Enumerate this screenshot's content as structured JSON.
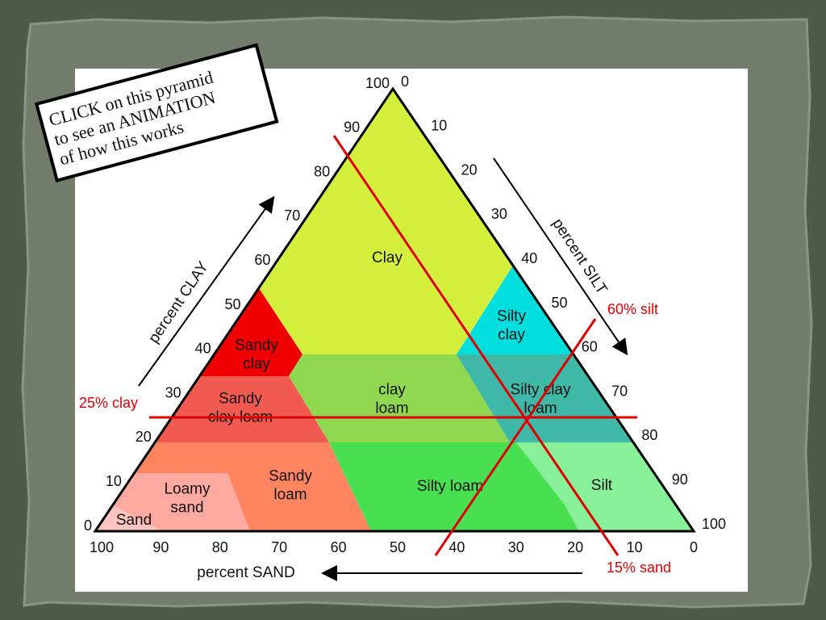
{
  "note": {
    "lines": [
      "CLICK on this pyramid",
      "to see an ANIMATION",
      "of how this works"
    ]
  },
  "axes": {
    "clay": {
      "label": "percent CLAY",
      "ticks": [
        0,
        10,
        20,
        30,
        40,
        50,
        60,
        70,
        80,
        90,
        100
      ]
    },
    "silt": {
      "label": "percent SILT",
      "ticks": [
        0,
        10,
        20,
        30,
        40,
        50,
        60,
        70,
        80,
        90,
        100
      ]
    },
    "sand": {
      "label": "percent SAND",
      "ticks": [
        100,
        90,
        80,
        70,
        60,
        50,
        40,
        30,
        20,
        10,
        0
      ]
    }
  },
  "regions": [
    {
      "lines": [
        "Clay"
      ]
    },
    {
      "lines": [
        "Sandy",
        "clay"
      ]
    },
    {
      "lines": [
        "Silty",
        "clay"
      ]
    },
    {
      "lines": [
        "clay",
        "loam"
      ]
    },
    {
      "lines": [
        "Silty clay",
        "loam"
      ]
    },
    {
      "lines": [
        "Sandy",
        "clay loam"
      ]
    },
    {
      "lines": [
        "Sandy",
        "loam"
      ]
    },
    {
      "lines": [
        "Loamy",
        "sand"
      ]
    },
    {
      "lines": [
        "Sand"
      ]
    },
    {
      "lines": [
        "Silty loam"
      ]
    },
    {
      "lines": [
        "Silt"
      ]
    }
  ],
  "annotations": [
    "60% silt",
    "25% clay",
    "15% sand"
  ]
}
